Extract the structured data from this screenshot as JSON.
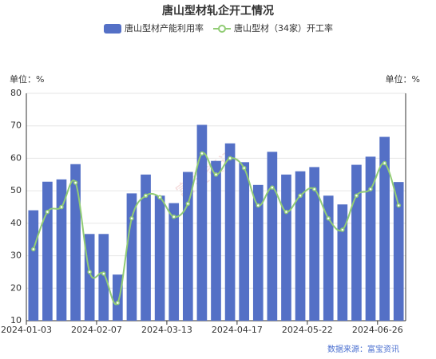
{
  "chart_data": {
    "type": "bar_line",
    "title": "唐山型材轧企开工情况",
    "y_unit_left": "单位：%",
    "y_unit_right": "单位：%",
    "source": "数据来源：富宝资讯",
    "watermark": "富宝资讯",
    "categories": [
      "2024-01-03",
      null,
      null,
      null,
      null,
      "2024-02-07",
      null,
      null,
      null,
      null,
      "2024-03-13",
      null,
      null,
      null,
      null,
      "2024-04-17",
      null,
      null,
      null,
      null,
      "2024-05-22",
      null,
      null,
      null,
      null,
      "2024-06-26",
      null
    ],
    "series": [
      {
        "name": "唐山型材产能利用率",
        "type": "bar",
        "color": "#5470c6",
        "values": [
          44,
          52.8,
          53.5,
          58.2,
          36.7,
          36.7,
          24.2,
          49.2,
          55,
          48.5,
          46.2,
          55.8,
          70.3,
          59.2,
          64.6,
          58.8,
          51.8,
          62,
          55,
          56,
          57.3,
          48.5,
          45.8,
          58,
          60.5,
          66.6,
          52.7
        ]
      },
      {
        "name": "唐山型材（34家）开工率",
        "type": "line",
        "color": "#91cc75",
        "values": [
          32,
          43.5,
          45,
          52.5,
          25,
          24.5,
          15.5,
          41.5,
          48.5,
          48,
          42,
          46,
          61.5,
          55,
          60,
          57,
          45.5,
          51,
          43.5,
          48.5,
          50.5,
          41.5,
          38,
          48.5,
          50.5,
          58.5,
          45.5
        ]
      }
    ],
    "ylim": [
      10,
      80
    ],
    "yticks": [
      10,
      20,
      30,
      40,
      50,
      60,
      70,
      80
    ],
    "grid": true
  }
}
